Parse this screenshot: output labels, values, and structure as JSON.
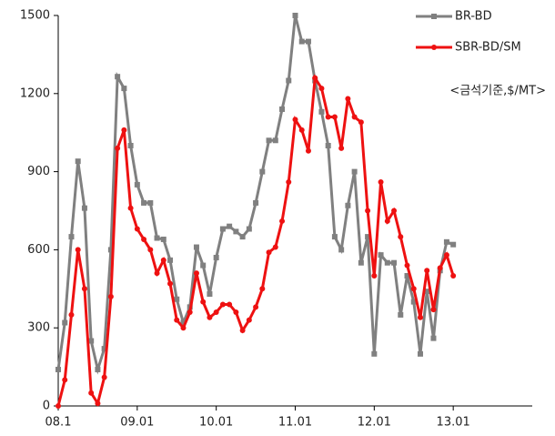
{
  "chart_data": {
    "type": "line",
    "annotation": "<금석기준,$/MT>",
    "x": [
      0,
      1,
      2,
      3,
      4,
      5,
      6,
      7,
      8,
      9,
      10,
      11,
      12,
      13,
      14,
      15,
      16,
      17,
      18,
      19,
      20,
      21,
      22,
      23,
      24,
      25,
      26,
      27,
      28,
      29,
      30,
      31,
      32,
      33,
      34,
      35,
      36,
      37,
      38,
      39,
      40,
      41,
      42,
      43,
      44,
      45,
      46,
      47,
      48,
      49,
      50,
      51,
      52,
      53,
      54,
      55,
      56,
      57,
      58,
      59,
      60
    ],
    "xlim": [
      0,
      72
    ],
    "xticks": [
      {
        "value": 0,
        "label": "08.1"
      },
      {
        "value": 12,
        "label": "09.01"
      },
      {
        "value": 24,
        "label": "10.01"
      },
      {
        "value": 36,
        "label": "11.01"
      },
      {
        "value": 48,
        "label": "12.01"
      },
      {
        "value": 60,
        "label": "13.01"
      }
    ],
    "ylim": [
      0,
      1500
    ],
    "yticks": [
      0,
      300,
      600,
      900,
      1200,
      1500
    ],
    "legend": "top-right",
    "series": [
      {
        "name": "BR-BD",
        "color": "#808080",
        "marker": "square",
        "values": [
          140,
          320,
          650,
          940,
          760,
          250,
          140,
          220,
          600,
          1265,
          1220,
          1000,
          850,
          780,
          780,
          645,
          640,
          560,
          410,
          320,
          380,
          610,
          540,
          430,
          570,
          680,
          690,
          670,
          650,
          680,
          780,
          900,
          1020,
          1020,
          1140,
          1250,
          1500,
          1400,
          1400,
          1250,
          1130,
          1000,
          650,
          600,
          770,
          900,
          550,
          650,
          200,
          580,
          550,
          550,
          350,
          500,
          400,
          200,
          440,
          260,
          520,
          630,
          620
        ]
      },
      {
        "name": "SBR-BD/SM",
        "color": "#ee1111",
        "marker": "circle",
        "values": [
          0,
          100,
          350,
          600,
          450,
          50,
          10,
          110,
          420,
          990,
          1060,
          760,
          680,
          640,
          600,
          510,
          560,
          470,
          330,
          300,
          360,
          510,
          400,
          340,
          360,
          390,
          390,
          360,
          290,
          330,
          380,
          450,
          590,
          610,
          710,
          860,
          1100,
          1060,
          980,
          1260,
          1220,
          1110,
          1110,
          990,
          1180,
          1110,
          1090,
          750,
          500,
          860,
          710,
          750,
          650,
          540,
          450,
          340,
          520,
          370,
          530,
          580,
          500
        ]
      }
    ]
  }
}
